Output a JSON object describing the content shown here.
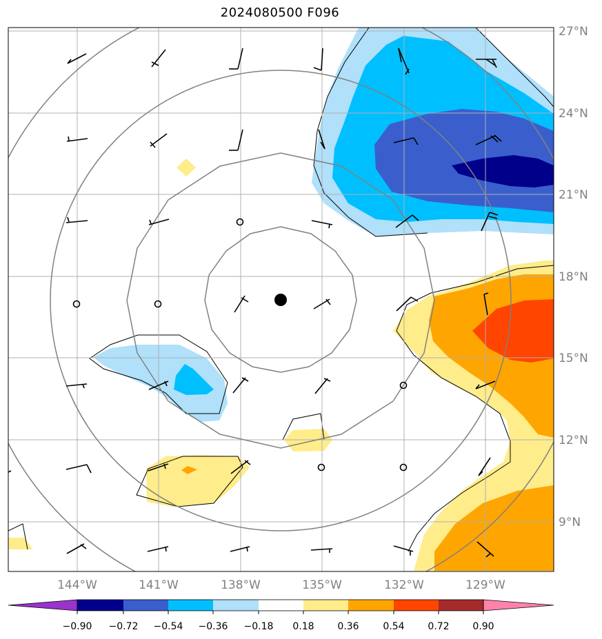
{
  "title": "2024080500 F096",
  "map": {
    "lat_ticks": [
      "27°N",
      "24°N",
      "21°N",
      "18°N",
      "15°N",
      "12°N",
      "9°N"
    ],
    "lon_ticks": [
      "144°W",
      "141°W",
      "138°W",
      "135°W",
      "132°W",
      "129°W"
    ],
    "center_marker": "storm-center-dot",
    "range_rings": 4
  },
  "colorbar": {
    "tick_labels": [
      "−0.90",
      "−0.72",
      "−0.54",
      "−0.36",
      "−0.18",
      "0.18",
      "0.36",
      "0.54",
      "0.72",
      "0.90"
    ],
    "colors": [
      "#9a32cd",
      "#00008b",
      "#3a5fcd",
      "#00bfff",
      "#b0e0fa",
      "#ffffff",
      "#ffec8b",
      "#ffa500",
      "#ff4500",
      "#a52a2a",
      "#ff82ab"
    ],
    "extend": "both"
  },
  "shading_colors": {
    "neg_light": "#b0e0fa",
    "neg_mid": "#00bfff",
    "neg_strong": "#3a5fcd",
    "neg_max": "#00008b",
    "pos_light": "#ffec8b",
    "pos_mid": "#ffa500",
    "pos_strong": "#ff4500"
  }
}
